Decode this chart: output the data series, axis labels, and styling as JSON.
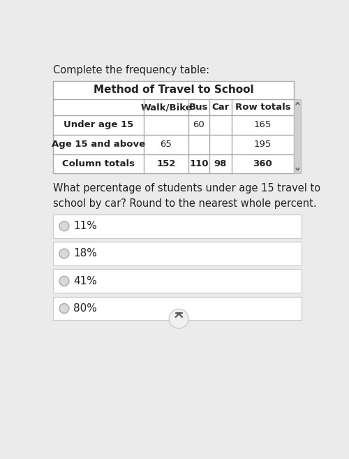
{
  "bg_color": "#ebebeb",
  "page_title": "Complete the frequency table:",
  "table_title": "Method of Travel to School",
  "col_headers": [
    "",
    "Walk/Bike",
    "Bus",
    "Car",
    "Row totals"
  ],
  "rows": [
    [
      "Under age 15",
      "",
      "60",
      "",
      "165"
    ],
    [
      "Age 15 and above",
      "65",
      "",
      "",
      "195"
    ],
    [
      "Column totals",
      "152",
      "110",
      "98",
      "360"
    ]
  ],
  "question_text": "What percentage of students under age 15 travel to\nschool by car? Round to the nearest whole percent.",
  "choices": [
    "11%",
    "18%",
    "41%",
    "80%"
  ],
  "text_color": "#222222",
  "table_border_color": "#aaaaaa",
  "table_bg_color": "#ffffff",
  "choice_border_color": "#cccccc",
  "choice_bg_color": "#ffffff",
  "radio_fill": "#d8d8d8",
  "radio_stroke": "#aaaaaa",
  "scroll_btn_fill": "#f0f0f0",
  "scroll_btn_stroke": "#cccccc",
  "scroll_arrow_color": "#555555",
  "scroll_bar_fill": "#d0d0d0",
  "scroll_bar_stroke": "#bbbbbb"
}
